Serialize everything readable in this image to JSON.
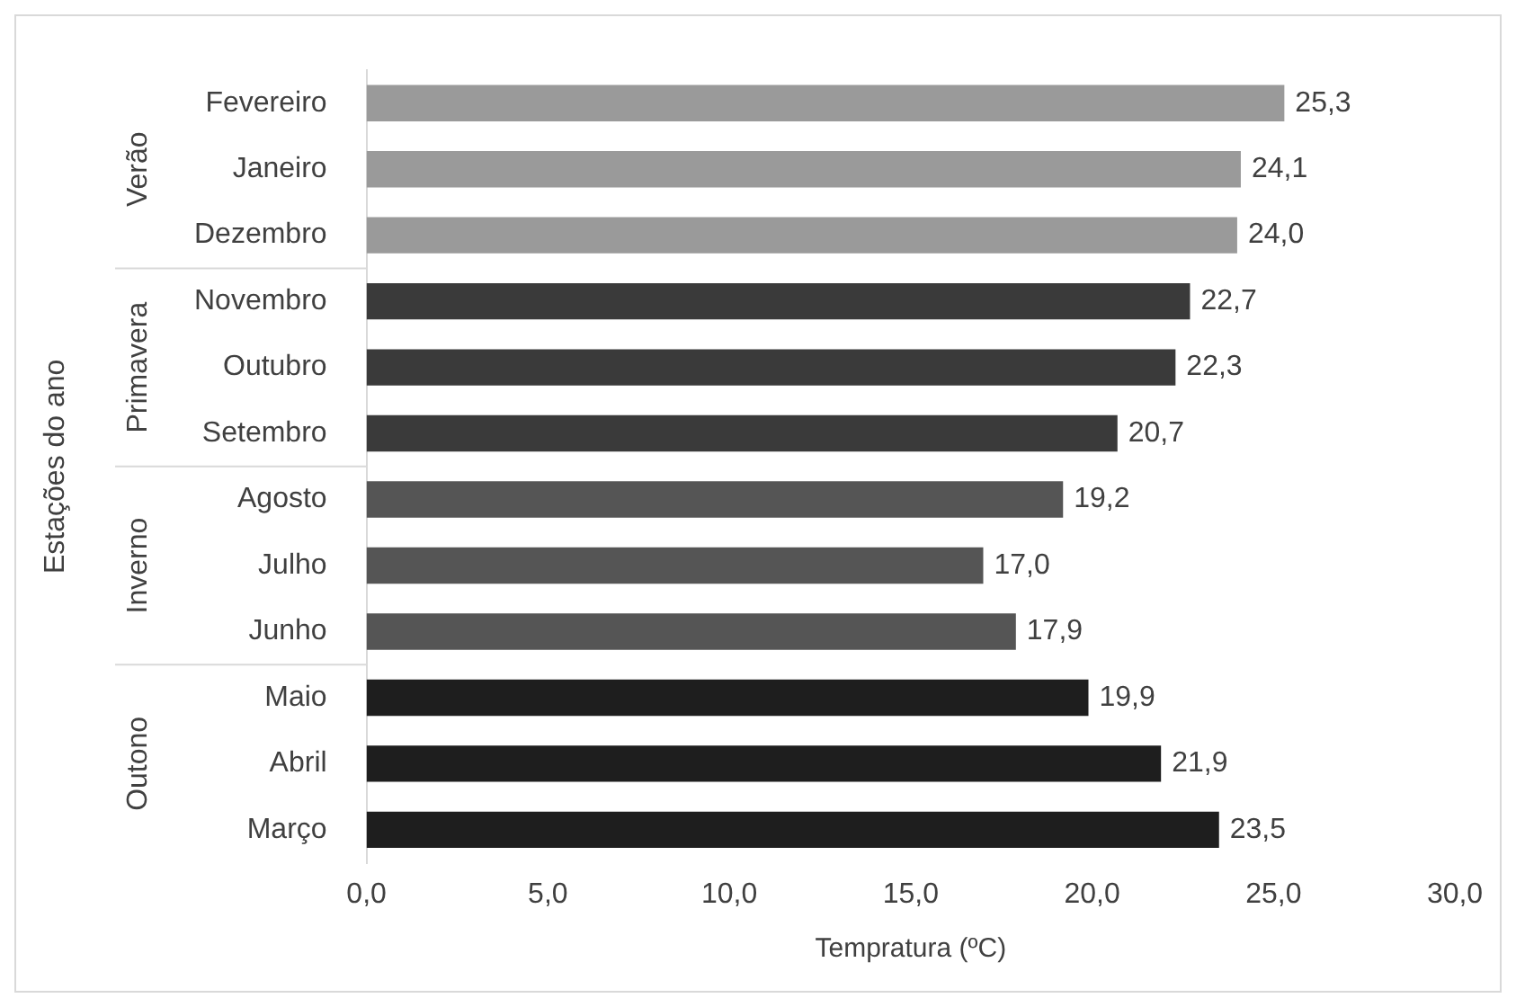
{
  "chart_data": {
    "type": "bar",
    "orientation": "horizontal",
    "xlabel": "Tempratura (ºC)",
    "ylabel": "Estações do ano",
    "categories": [
      "Fevereiro",
      "Janeiro",
      "Dezembro",
      "Novembro",
      "Outubro",
      "Setembro",
      "Agosto",
      "Julho",
      "Junho",
      "Maio",
      "Abril",
      "Março"
    ],
    "values": [
      25.3,
      24.1,
      24.0,
      22.7,
      22.3,
      20.7,
      19.2,
      17.0,
      17.9,
      19.9,
      21.9,
      23.5
    ],
    "value_labels": [
      "25,3",
      "24,1",
      "24,0",
      "22,7",
      "22,3",
      "20,7",
      "19,2",
      "17,0",
      "17,9",
      "19,9",
      "21,9",
      "23,5"
    ],
    "colors": [
      "#9a9a9a",
      "#9a9a9a",
      "#9a9a9a",
      "#3a3a3a",
      "#3a3a3a",
      "#3a3a3a",
      "#555555",
      "#555555",
      "#555555",
      "#1e1e1e",
      "#1e1e1e",
      "#1e1e1e"
    ],
    "xlim": [
      0,
      30
    ],
    "xticks": [
      {
        "value": 0,
        "label": "0,0"
      },
      {
        "value": 5,
        "label": "5,0"
      },
      {
        "value": 10,
        "label": "10,0"
      },
      {
        "value": 15,
        "label": "15,0"
      },
      {
        "value": 20,
        "label": "20,0"
      },
      {
        "value": 25,
        "label": "25,0"
      },
      {
        "value": 30,
        "label": "30,0"
      }
    ],
    "annotations": [
      "Verão",
      "Primavera",
      "Inverno",
      "Outono"
    ],
    "grid": false,
    "legend": false
  }
}
